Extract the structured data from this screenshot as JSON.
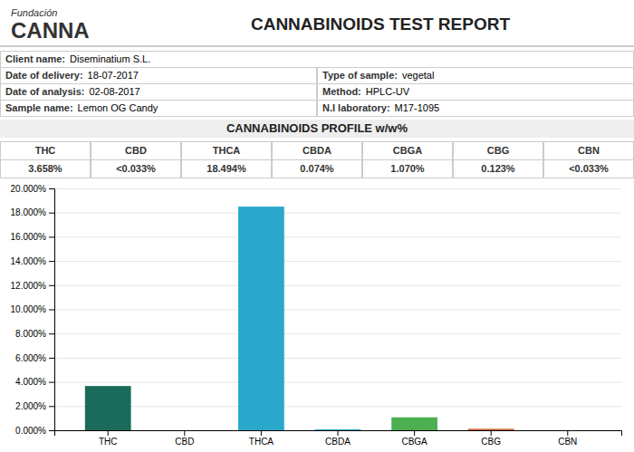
{
  "chart_data": {
    "type": "bar",
    "title": "CANNABINOIDS TEST REPORT",
    "subtitle": "CANNABINOIDS PROFILE w/w%",
    "annotations": [
      "Fundación",
      "CANNA",
      "Client name:",
      "Diseminatium S.L.",
      "Date of delivery:",
      "18-07-2017",
      "Type of sample:",
      "vegetal",
      "Date of analysis:",
      "02-08-2017",
      "Method:",
      "HPLC-UV",
      "Sample name:",
      "Lemon OG Candy",
      "N.I laboratory:",
      "M17-1095"
    ],
    "categories": [
      "THC",
      "CBD",
      "THCA",
      "CBDA",
      "CBGA",
      "CBG",
      "CBN"
    ],
    "values": [
      3.658,
      0.0,
      18.494,
      0.074,
      1.07,
      0.123,
      0.0
    ],
    "value_labels": [
      "3.658%",
      "<0.033%",
      "18.494%",
      "0.074%",
      "1.070%",
      "0.123%",
      "<0.033%"
    ],
    "colors": [
      "#1a6b5a",
      "#1a6b5a",
      "#2aa8cc",
      "#2aa8cc",
      "#4caf50",
      "#cc6633",
      "#cc6633"
    ],
    "ylim": [
      0,
      20
    ],
    "yticks": [
      {
        "value": 0,
        "label": "0.000%"
      },
      {
        "value": 2,
        "label": "2.000%"
      },
      {
        "value": 4,
        "label": "4.000%"
      },
      {
        "value": 6,
        "label": "6.000%"
      },
      {
        "value": 8,
        "label": "8.000%"
      },
      {
        "value": 10,
        "label": "10.000%"
      },
      {
        "value": 12,
        "label": "12.000%"
      },
      {
        "value": 14,
        "label": "14.000%"
      },
      {
        "value": 16,
        "label": "16.000%"
      },
      {
        "value": 18,
        "label": "18.000%"
      },
      {
        "value": 20,
        "label": "20.000%"
      }
    ],
    "grid": true
  }
}
